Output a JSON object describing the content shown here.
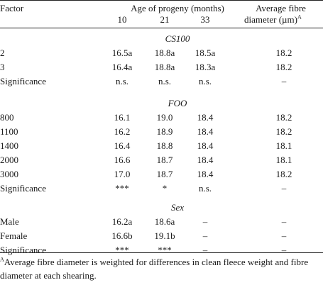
{
  "header": {
    "factor": "Factor",
    "age_title": "Age of progeny (months)",
    "age_cols": [
      "10",
      "21",
      "33"
    ],
    "diameter_line1": "Average fibre",
    "diameter_line2": "diameter (µm)",
    "diameter_sup": "A"
  },
  "sections": [
    {
      "title": "CS100",
      "rows": [
        {
          "factor": "2",
          "m10": "16.5a",
          "m21": "18.8a",
          "m33": "18.5a",
          "diam": "18.2"
        },
        {
          "factor": "3",
          "m10": "16.4a",
          "m21": "18.8a",
          "m33": "18.3a",
          "diam": "18.2"
        },
        {
          "factor": "Significance",
          "m10": "n.s.",
          "m21": "n.s.",
          "m33": "n.s.",
          "diam": "–"
        }
      ]
    },
    {
      "title": "FOO",
      "rows": [
        {
          "factor": "800",
          "m10": "16.1",
          "m21": "19.0",
          "m33": "18.4",
          "diam": "18.2"
        },
        {
          "factor": "1100",
          "m10": "16.2",
          "m21": "18.9",
          "m33": "18.4",
          "diam": "18.2"
        },
        {
          "factor": "1400",
          "m10": "16.4",
          "m21": "18.8",
          "m33": "18.4",
          "diam": "18.1"
        },
        {
          "factor": "2000",
          "m10": "16.6",
          "m21": "18.7",
          "m33": "18.4",
          "diam": "18.1"
        },
        {
          "factor": "3000",
          "m10": "17.0",
          "m21": "18.7",
          "m33": "18.4",
          "diam": "18.2"
        },
        {
          "factor": "Significance",
          "m10": "***",
          "m21": "*",
          "m33": "n.s.",
          "diam": "–"
        }
      ]
    },
    {
      "title": "Sex",
      "rows": [
        {
          "factor": "Male",
          "m10": "16.2a",
          "m21": "18.6a",
          "m33": "–",
          "diam": "–"
        },
        {
          "factor": "Female",
          "m10": "16.6b",
          "m21": "19.1b",
          "m33": "–",
          "diam": "–"
        },
        {
          "factor": "Significance",
          "m10": "***",
          "m21": "***",
          "m33": "–",
          "diam": "–"
        }
      ]
    }
  ],
  "footnote": {
    "marker": "A",
    "text": "Average fibre diameter is weighted for differences in clean fleece weight and fibre diameter at each shearing."
  }
}
